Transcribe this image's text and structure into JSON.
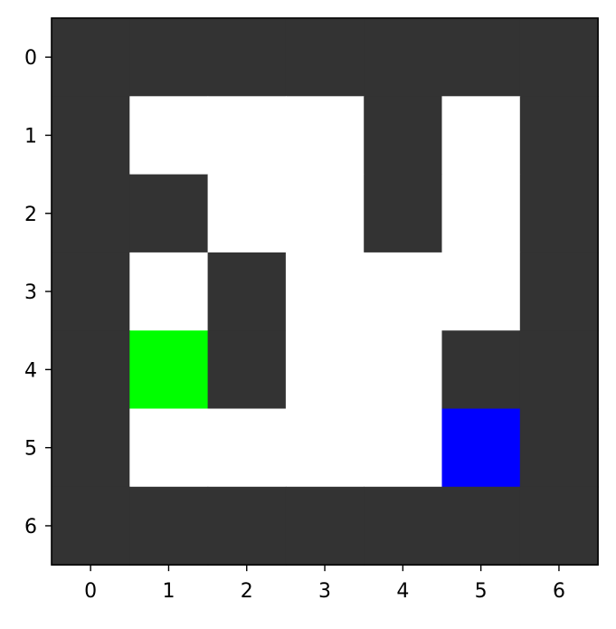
{
  "grid": {
    "rows": 7,
    "cols": 7,
    "cells": [
      [
        "wall",
        "wall",
        "wall",
        "wall",
        "wall",
        "wall",
        "wall"
      ],
      [
        "wall",
        "floor",
        "floor",
        "floor",
        "wall",
        "floor",
        "wall"
      ],
      [
        "wall",
        "wall",
        "floor",
        "floor",
        "wall",
        "floor",
        "wall"
      ],
      [
        "wall",
        "floor",
        "wall",
        "floor",
        "floor",
        "floor",
        "wall"
      ],
      [
        "wall",
        "goal",
        "wall",
        "floor",
        "floor",
        "wall",
        "wall"
      ],
      [
        "wall",
        "floor",
        "floor",
        "floor",
        "floor",
        "agent",
        "wall"
      ],
      [
        "wall",
        "wall",
        "wall",
        "wall",
        "wall",
        "wall",
        "wall"
      ]
    ]
  },
  "legend_colors": {
    "wall": "#333333",
    "floor": "#ffffff",
    "goal": "#00ff00",
    "agent": "#0000ff"
  },
  "axes": {
    "x_ticks": [
      "0",
      "1",
      "2",
      "3",
      "4",
      "5",
      "6"
    ],
    "y_ticks": [
      "0",
      "1",
      "2",
      "3",
      "4",
      "5",
      "6"
    ]
  }
}
